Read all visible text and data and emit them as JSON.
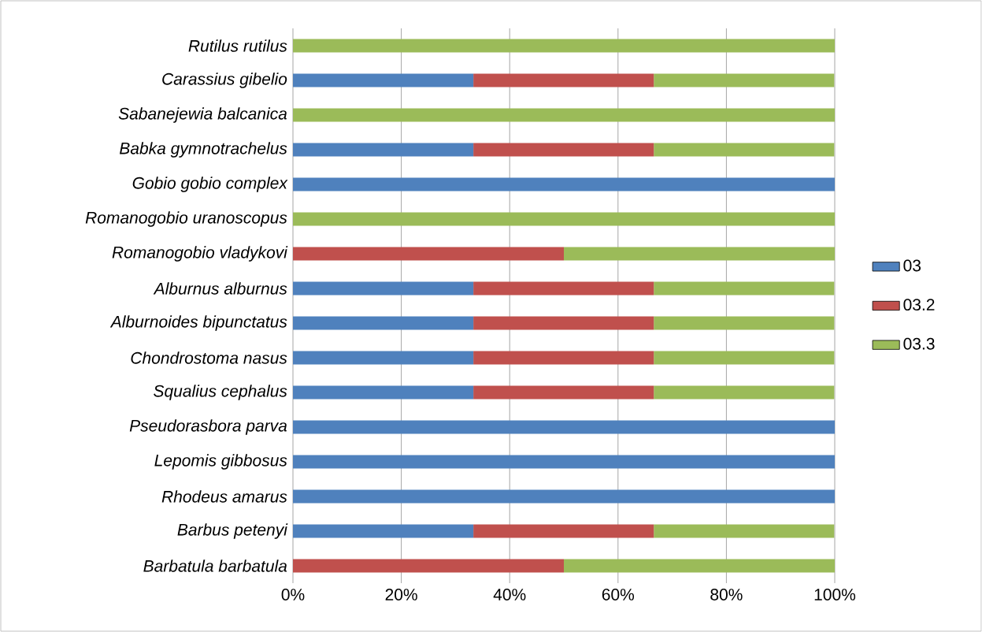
{
  "chart_data": {
    "type": "bar",
    "orientation": "horizontal",
    "stacked": true,
    "categories": [
      "Rutilus rutilus",
      "Carassius gibelio",
      "Sabanejewia balcanica",
      "Babka gymnotrachelus",
      "Gobio gobio complex",
      "Romanogobio uranoscopus",
      "Romanogobio vladykovi",
      "Alburnus alburnus",
      "Alburnoides bipunctatus",
      "Chondrostoma nasus",
      "Squalius cephalus",
      "Pseudorasbora parva",
      "Lepomis gibbosus",
      "Rhodeus amarus",
      "Barbus petenyi",
      "Barbatula barbatula"
    ],
    "series": [
      {
        "name": "03",
        "color": "#4f81bd",
        "values": [
          0,
          33.3,
          0,
          33.3,
          100,
          0,
          0,
          33.3,
          33.3,
          33.3,
          33.3,
          100,
          100,
          100,
          33.3,
          0
        ]
      },
      {
        "name": "03.2",
        "color": "#c0504d",
        "values": [
          0,
          33.3,
          0,
          33.3,
          0,
          0,
          50,
          33.3,
          33.3,
          33.3,
          33.3,
          0,
          0,
          0,
          33.3,
          50
        ]
      },
      {
        "name": "03.3",
        "color": "#9bbb59",
        "values": [
          100,
          33.3,
          100,
          33.3,
          0,
          100,
          50,
          33.3,
          33.3,
          33.3,
          33.3,
          0,
          0,
          0,
          33.3,
          50
        ]
      }
    ],
    "xlim": [
      0,
      100
    ],
    "xticks": [
      {
        "value": 0,
        "label": "0%"
      },
      {
        "value": 20,
        "label": "20%"
      },
      {
        "value": 40,
        "label": "40%"
      },
      {
        "value": 60,
        "label": "60%"
      },
      {
        "value": 80,
        "label": "80%"
      },
      {
        "value": 100,
        "label": "100%"
      }
    ],
    "grid": "x",
    "legend": "right"
  }
}
